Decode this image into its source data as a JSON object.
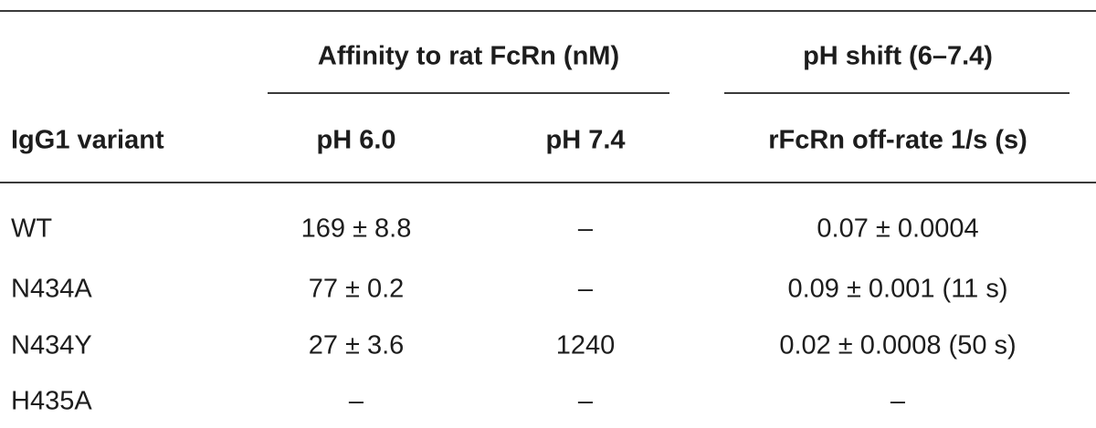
{
  "table": {
    "groups": [
      "Affinity to rat FcRn (nM)",
      "pH shift (6–7.4)"
    ],
    "columns": [
      "IgG1 variant",
      "pH 6.0",
      "pH 7.4",
      "rFcRn off-rate 1/s (s)"
    ],
    "rows": [
      [
        "WT",
        "169 ± 8.8",
        "–",
        "0.07 ± 0.0004"
      ],
      [
        "N434A",
        "77 ± 0.2",
        "–",
        "0.09 ± 0.001 (11 s)"
      ],
      [
        "N434Y",
        "27 ± 3.6",
        "1240",
        "0.02 ± 0.0008 (50 s)"
      ],
      [
        "H435A",
        "–",
        "–",
        "–"
      ]
    ]
  }
}
